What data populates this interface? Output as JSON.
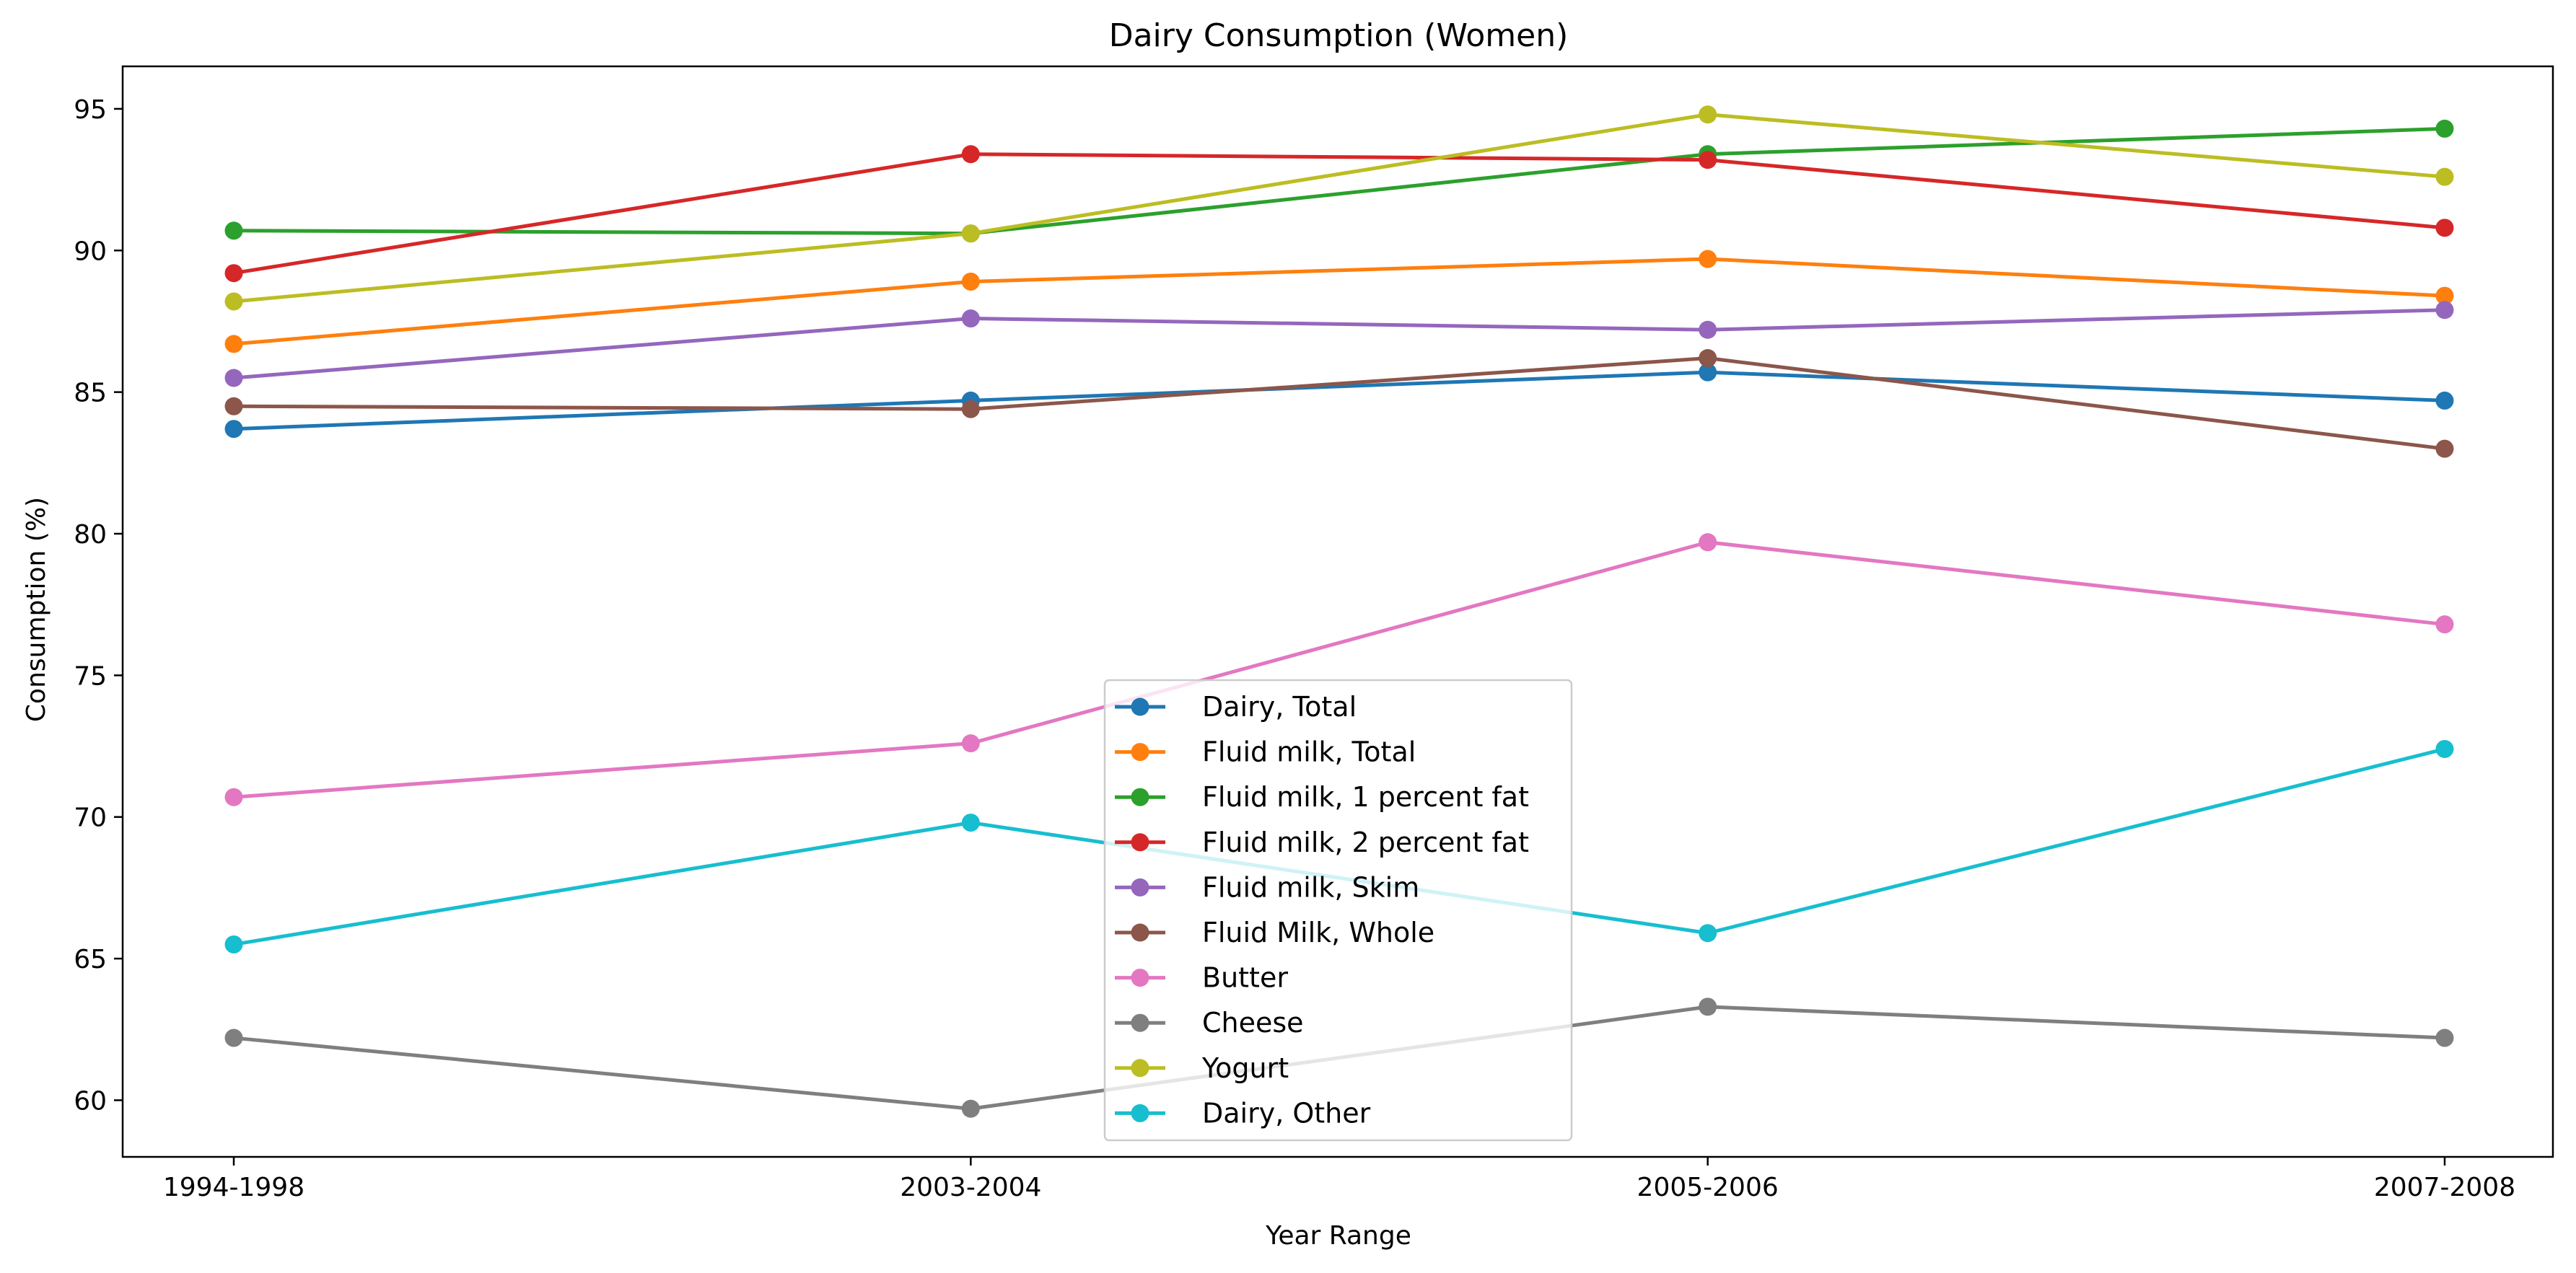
{
  "chart_data": {
    "type": "line",
    "title": "Dairy Consumption (Women)",
    "xlabel": "Year Range",
    "ylabel": "Consumption (%)",
    "categories": [
      "1994-1998",
      "2003-2004",
      "2005-2006",
      "2007-2008"
    ],
    "ylim": [
      58,
      96.5
    ],
    "yticks": [
      60,
      65,
      70,
      75,
      80,
      85,
      90,
      95
    ],
    "grid": false,
    "legend_position": "bottom-center",
    "series": [
      {
        "name": "Dairy, Total",
        "color": "#1f77b4",
        "values": [
          83.7,
          84.7,
          85.7,
          84.7
        ]
      },
      {
        "name": "Fluid milk, Total",
        "color": "#ff7f0e",
        "values": [
          86.7,
          88.9,
          89.7,
          88.4
        ]
      },
      {
        "name": "Fluid milk, 1 percent fat",
        "color": "#2ca02c",
        "values": [
          90.7,
          90.6,
          93.4,
          94.3
        ]
      },
      {
        "name": "Fluid milk, 2 percent fat",
        "color": "#d62728",
        "values": [
          89.2,
          93.4,
          93.2,
          90.8
        ]
      },
      {
        "name": "Fluid milk, Skim",
        "color": "#9467bd",
        "values": [
          85.5,
          87.6,
          87.2,
          87.9
        ]
      },
      {
        "name": "Fluid Milk, Whole",
        "color": "#8c564b",
        "values": [
          84.5,
          84.4,
          86.2,
          83.0
        ]
      },
      {
        "name": "Butter",
        "color": "#e377c2",
        "values": [
          70.7,
          72.6,
          79.7,
          76.8
        ]
      },
      {
        "name": "Cheese",
        "color": "#7f7f7f",
        "values": [
          62.2,
          59.7,
          63.3,
          62.2
        ]
      },
      {
        "name": "Yogurt",
        "color": "#bcbd22",
        "values": [
          88.2,
          90.6,
          94.8,
          92.6
        ]
      },
      {
        "name": "Dairy, Other",
        "color": "#17becf",
        "values": [
          65.5,
          69.8,
          65.9,
          72.4
        ]
      }
    ]
  }
}
